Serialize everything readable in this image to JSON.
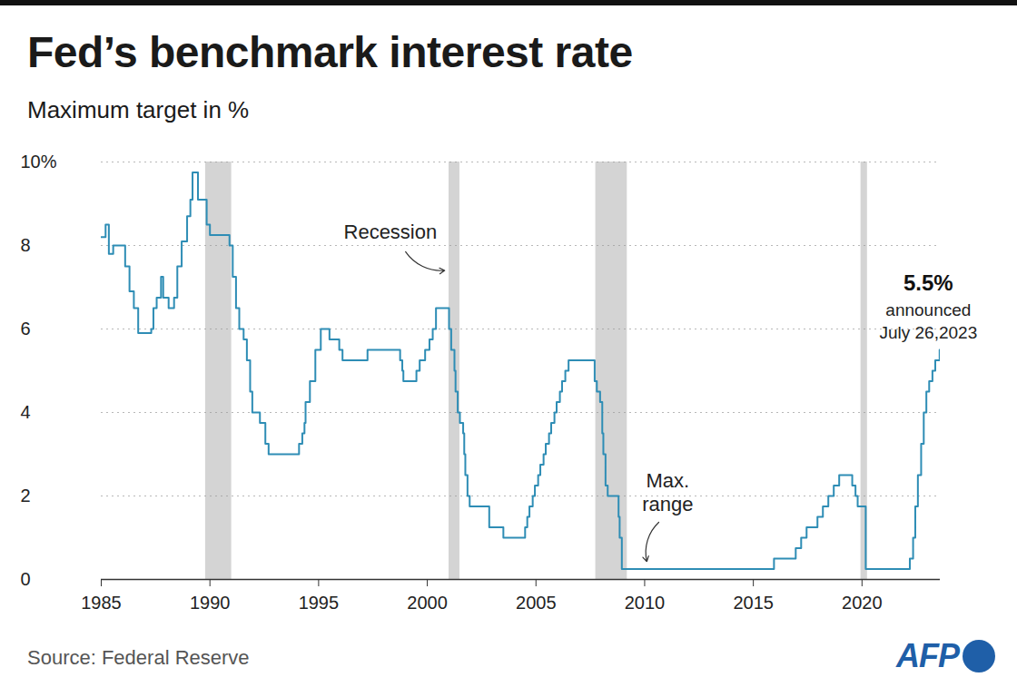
{
  "chart_data": {
    "type": "line",
    "title": "Fed’s benchmark interest rate",
    "subtitle": "Maximum target in %",
    "source": "Source: Federal Reserve",
    "credit": "AFP",
    "color": "#2e8db5",
    "line_style": "step",
    "grid": true,
    "x": [
      1985.0,
      1985.2,
      1985.35,
      1985.55,
      1986.1,
      1986.3,
      1986.5,
      1986.7,
      1987.3,
      1987.4,
      1987.55,
      1987.75,
      1987.85,
      1988.1,
      1988.35,
      1988.5,
      1988.7,
      1988.95,
      1989.1,
      1989.2,
      1989.45,
      1989.85,
      1990.0,
      1990.9,
      1991.05,
      1991.2,
      1991.35,
      1991.55,
      1991.7,
      1991.85,
      1991.95,
      1992.3,
      1992.55,
      1992.7,
      1994.1,
      1994.25,
      1994.35,
      1994.4,
      1994.6,
      1994.85,
      1995.1,
      1995.5,
      1995.95,
      1996.1,
      1997.25,
      1998.75,
      1998.85,
      1998.9,
      1999.5,
      1999.65,
      1999.9,
      2000.1,
      2000.25,
      2000.4,
      2001.0,
      2001.1,
      2001.25,
      2001.3,
      2001.4,
      2001.5,
      2001.65,
      2001.7,
      2001.75,
      2001.85,
      2001.95,
      2002.85,
      2003.5,
      2004.5,
      2004.6,
      2004.7,
      2004.85,
      2004.95,
      2005.1,
      2005.2,
      2005.35,
      2005.45,
      2005.6,
      2005.7,
      2005.85,
      2005.95,
      2006.1,
      2006.2,
      2006.35,
      2006.5,
      2007.7,
      2007.8,
      2007.95,
      2008.05,
      2008.1,
      2008.2,
      2008.3,
      2008.8,
      2008.85,
      2008.95,
      2015.95,
      2016.95,
      2017.2,
      2017.45,
      2017.95,
      2018.2,
      2018.45,
      2018.7,
      2018.95,
      2019.55,
      2019.7,
      2019.8,
      2020.17,
      2022.2,
      2022.35,
      2022.45,
      2022.57,
      2022.72,
      2022.84,
      2022.96,
      2023.09,
      2023.24,
      2023.37,
      2023.57
    ],
    "values": [
      8.2,
      8.5,
      7.8,
      8.0,
      7.5,
      6.9,
      6.5,
      5.9,
      6.0,
      6.5,
      6.75,
      7.25,
      6.75,
      6.5,
      6.75,
      7.5,
      8.1,
      8.7,
      9.1,
      9.75,
      9.1,
      8.5,
      8.25,
      8.0,
      7.25,
      6.5,
      6.0,
      5.75,
      5.25,
      4.5,
      4.0,
      3.75,
      3.25,
      3.0,
      3.25,
      3.5,
      3.75,
      4.25,
      4.75,
      5.5,
      6.0,
      5.75,
      5.5,
      5.25,
      5.5,
      5.25,
      5.0,
      4.75,
      5.0,
      5.25,
      5.5,
      5.75,
      6.0,
      6.5,
      6.0,
      5.5,
      5.0,
      4.5,
      4.0,
      3.75,
      3.5,
      3.0,
      2.5,
      2.0,
      1.75,
      1.25,
      1.0,
      1.25,
      1.5,
      1.75,
      2.0,
      2.25,
      2.5,
      2.75,
      3.0,
      3.25,
      3.5,
      3.75,
      4.0,
      4.25,
      4.5,
      4.75,
      5.0,
      5.25,
      4.75,
      4.5,
      4.25,
      3.5,
      3.0,
      2.25,
      2.0,
      1.5,
      1.0,
      0.25,
      0.5,
      0.75,
      1.0,
      1.25,
      1.5,
      1.75,
      2.0,
      2.25,
      2.5,
      2.25,
      2.0,
      1.75,
      0.25,
      0.5,
      1.0,
      1.75,
      2.5,
      3.25,
      4.0,
      4.5,
      4.75,
      5.0,
      5.25,
      5.5
    ],
    "xlim": [
      1985,
      2023.6
    ],
    "xticks": [
      1985,
      1990,
      1995,
      2000,
      2005,
      2010,
      2015,
      2020
    ],
    "ylim": [
      0,
      10
    ],
    "yticks": [
      0,
      2,
      4,
      6,
      8,
      {
        "value": 10,
        "label": "10%"
      }
    ],
    "recessions": [
      [
        1989.8,
        1991.0
      ],
      [
        2001.0,
        2001.5
      ],
      [
        2007.75,
        2009.2
      ],
      [
        2019.95,
        2020.25
      ]
    ],
    "annotations": [
      {
        "text": "Recession",
        "x": 1998.3,
        "y": 8.33,
        "arrow_from": [
          1999.0,
          7.85
        ],
        "arrow_to": [
          2000.8,
          7.4
        ]
      },
      {
        "text": "Max.\nrange",
        "x": 2011.06,
        "y": 2.1,
        "arrow_from": [
          2010.65,
          1.37
        ],
        "arrow_to": [
          2010.1,
          0.43
        ]
      }
    ],
    "end_label": {
      "value": 5.5,
      "value_label": "5.5%",
      "text": "announced\nJuly 26,2023",
      "x": 2023.05,
      "y": 7.09
    }
  }
}
